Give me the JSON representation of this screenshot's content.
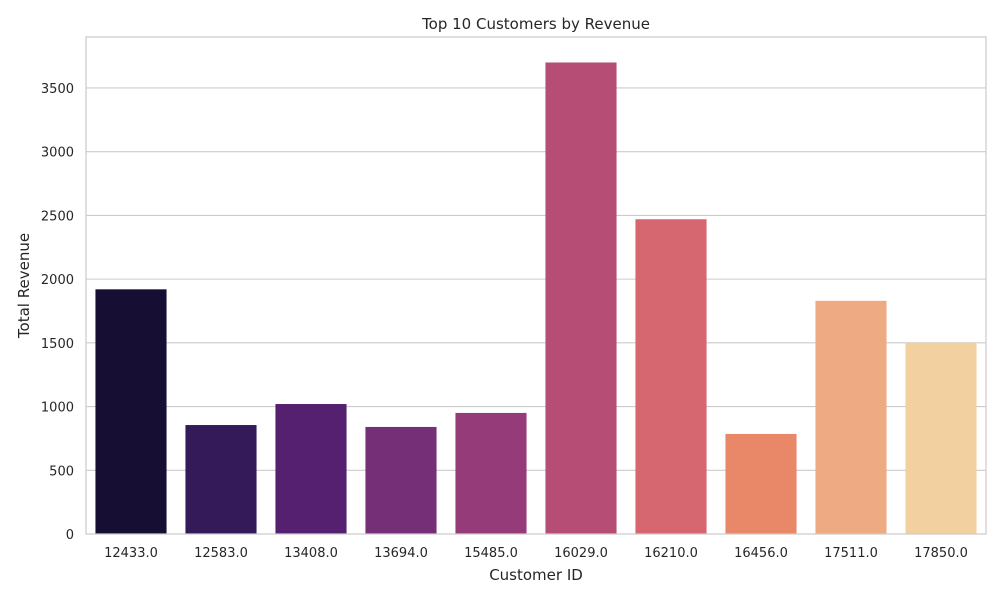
{
  "chart_data": {
    "type": "bar",
    "title": "Top 10 Customers by Revenue",
    "xlabel": "Customer ID",
    "ylabel": "Total Revenue",
    "categories": [
      "12433.0",
      "12583.0",
      "13408.0",
      "13694.0",
      "15485.0",
      "16029.0",
      "16210.0",
      "16456.0",
      "17511.0",
      "17850.0"
    ],
    "values": [
      1920,
      855,
      1020,
      840,
      950,
      3700,
      2470,
      785,
      1830,
      1500
    ],
    "colors": [
      "#170f33",
      "#351a5a",
      "#562071",
      "#742f77",
      "#963b7a",
      "#b64d74",
      "#d6666f",
      "#e98769",
      "#eeab83",
      "#f2d09f"
    ],
    "ylim": [
      0,
      3900
    ],
    "yticks": [
      0,
      500,
      1000,
      1500,
      2000,
      2500,
      3000,
      3500
    ],
    "grid": "y",
    "legend": "none"
  }
}
